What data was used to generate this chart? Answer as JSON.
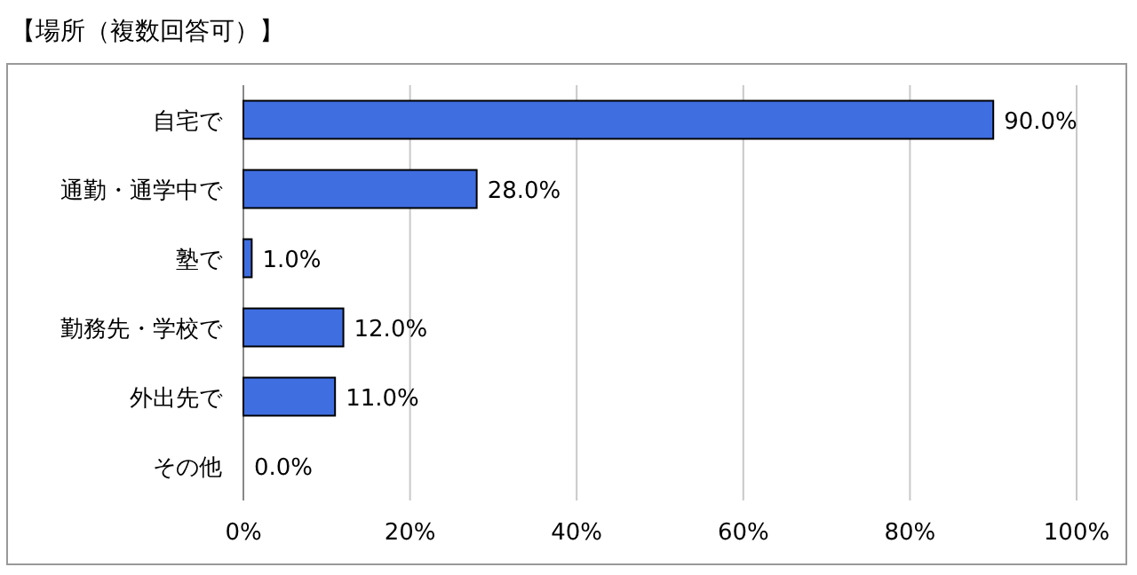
{
  "chart_data": {
    "type": "bar",
    "orientation": "horizontal",
    "title": "【場所（複数回答可）】",
    "categories": [
      "自宅で",
      "通勤・通学中で",
      "塾で",
      "勤務先・学校で",
      "外出先で",
      "その他"
    ],
    "values": [
      90,
      28,
      1,
      12,
      11,
      0
    ],
    "value_labels": [
      "90.0%",
      "28.0%",
      "1.0%",
      "12.0%",
      "11.0%",
      "0.0%"
    ],
    "color": "#3f6ee0",
    "xlim": [
      0,
      100
    ],
    "xticks": [
      {
        "value": 0,
        "label": "0%"
      },
      {
        "value": 20,
        "label": "20%"
      },
      {
        "value": 40,
        "label": "40%"
      },
      {
        "value": 60,
        "label": "60%"
      },
      {
        "value": 80,
        "label": "80%"
      },
      {
        "value": 100,
        "label": "100%"
      }
    ],
    "grid": "x"
  }
}
